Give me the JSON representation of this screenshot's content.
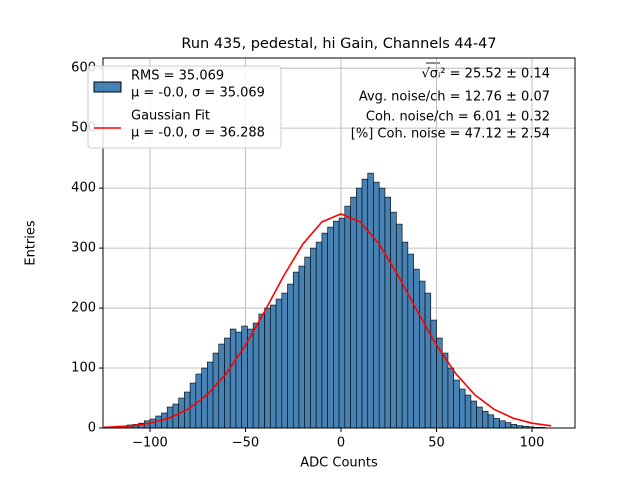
{
  "chart_data": {
    "type": "histogram",
    "title": "Run 435, pedestal, hi Gain, Channels 44-47",
    "xlabel": "ADC Counts",
    "ylabel": "Entries",
    "xlim": [
      -124.6,
      122.5
    ],
    "ylim": [
      0,
      617
    ],
    "xticks": [
      {
        "value": -100,
        "label": "−100"
      },
      {
        "value": -50,
        "label": "−50"
      },
      0,
      50,
      100
    ],
    "yticks": [
      0,
      100,
      200,
      300,
      400,
      500,
      600
    ],
    "grid": true,
    "legend": "upper left",
    "bins": [
      -124,
      -121,
      -118,
      -115,
      -112,
      -109,
      -106,
      -103,
      -100,
      -97,
      -94,
      -91,
      -88,
      -85,
      -82,
      -79,
      -76,
      -73,
      -70,
      -67,
      -64,
      -61,
      -58,
      -55,
      -52,
      -49,
      -46,
      -43,
      -40,
      -37,
      -34,
      -31,
      -28,
      -25,
      -22,
      -19,
      -16,
      -13,
      -10,
      -7,
      -4,
      -1,
      2,
      5,
      8,
      11,
      14,
      17,
      20,
      23,
      26,
      29,
      32,
      35,
      38,
      41,
      44,
      47,
      50,
      53,
      56,
      59,
      62,
      65,
      68,
      71,
      74,
      77,
      80,
      83,
      86,
      89,
      92,
      95,
      98,
      101,
      104,
      107,
      110
    ],
    "histogram": {
      "name": [
        "RMS = 35.069",
        "μ = -0.0, σ = 35.069"
      ],
      "color": "#4682b4",
      "edgecolor": "#000000",
      "values": [
        2,
        2,
        3,
        3,
        5,
        6,
        8,
        12,
        15,
        20,
        25,
        35,
        40,
        50,
        60,
        75,
        90,
        100,
        110,
        125,
        140,
        150,
        165,
        160,
        170,
        165,
        175,
        190,
        200,
        205,
        215,
        225,
        240,
        260,
        270,
        285,
        300,
        310,
        325,
        335,
        345,
        350,
        370,
        385,
        400,
        415,
        425,
        410,
        400,
        385,
        360,
        340,
        310,
        290,
        265,
        245,
        225,
        180,
        150,
        125,
        100,
        80,
        65,
        55,
        45,
        35,
        28,
        22,
        16,
        12,
        9,
        6,
        4,
        3,
        2,
        1,
        1,
        0
      ]
    },
    "fit": {
      "name": [
        "Gaussian Fit",
        "μ = -0.0, σ = 36.288"
      ],
      "color": "#ff0000",
      "x": [
        -124,
        -110,
        -100,
        -90,
        -80,
        -70,
        -60,
        -50,
        -40,
        -30,
        -20,
        -10,
        0,
        10,
        20,
        30,
        40,
        50,
        60,
        70,
        80,
        90,
        100,
        110
      ],
      "values": [
        1.0,
        3.6,
        8.0,
        16.5,
        31.4,
        55.5,
        91.0,
        138.2,
        194.5,
        253.7,
        306.7,
        343.7,
        357,
        343.7,
        306.7,
        253.7,
        194.5,
        138.2,
        91.0,
        55.5,
        31.4,
        16.5,
        8.0,
        3.6
      ]
    },
    "annotations": [
      "√σᵢ² = 25.52 ± 0.14",
      "Avg. noise/ch = 12.76 ± 0.07",
      "Coh. noise/ch = 6.01 ± 0.32",
      "[%] Coh. noise = 47.12 ± 2.54"
    ]
  }
}
